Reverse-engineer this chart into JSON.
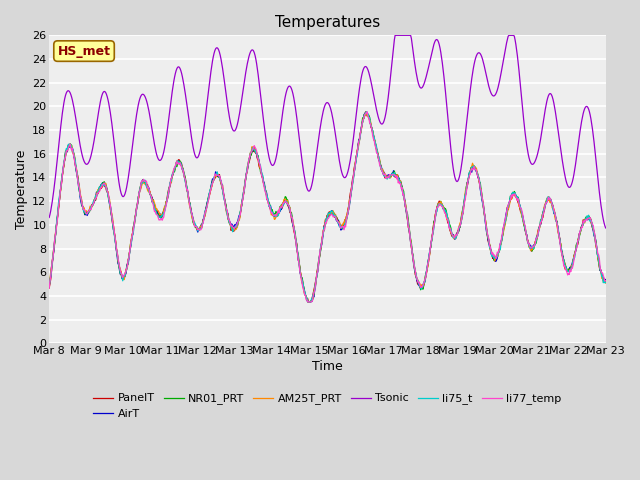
{
  "title": "Temperatures",
  "xlabel": "Time",
  "ylabel": "Temperature",
  "ylim": [
    0,
    26
  ],
  "yticks": [
    0,
    2,
    4,
    6,
    8,
    10,
    12,
    14,
    16,
    18,
    20,
    22,
    24,
    26
  ],
  "xtick_labels": [
    "Mar 8",
    "Mar 9",
    "Mar 10",
    "Mar 11",
    "Mar 12",
    "Mar 13",
    "Mar 14",
    "Mar 15",
    "Mar 16",
    "Mar 17",
    "Mar 18",
    "Mar 19",
    "Mar 20",
    "Mar 21",
    "Mar 22",
    "Mar 23"
  ],
  "annotation_text": "HS_met",
  "annotation_color": "#8B0000",
  "annotation_bg": "#FFFF99",
  "annotation_border": "#996600",
  "series_colors": {
    "PanelT": "#CC0000",
    "AirT": "#0000CC",
    "NR01_PRT": "#00AA00",
    "AM25T_PRT": "#FF8800",
    "Tsonic": "#9900CC",
    "li75_t": "#00CCCC",
    "li77_temp": "#FF44CC"
  },
  "bg_color": "#D8D8D8",
  "plot_bg": "#EEEEEE",
  "grid_color": "#FFFFFF",
  "title_fontsize": 11,
  "label_fontsize": 9,
  "tick_fontsize": 8
}
